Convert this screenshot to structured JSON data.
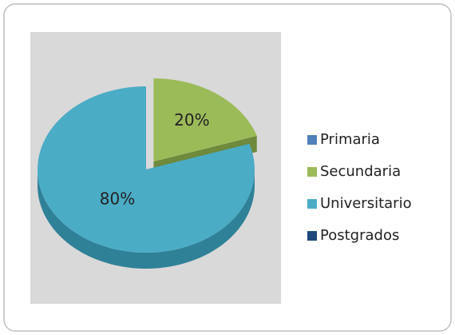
{
  "chart_data": {
    "type": "pie3d",
    "categories": [
      "Primaria",
      "Secundaria",
      "Universitario",
      "Postgrados"
    ],
    "values": [
      0,
      20,
      80,
      0
    ],
    "value_labels": [
      null,
      "20%",
      "80%",
      null
    ],
    "colors": [
      "#4f81bd",
      "#9bbb59",
      "#4bacc6",
      "#1f497d"
    ],
    "side_colors": [
      "#3a6190",
      "#6f8a3c",
      "#2f8198",
      "#14335a"
    ],
    "exploded": [
      "Secundaria"
    ],
    "legend": "right"
  }
}
